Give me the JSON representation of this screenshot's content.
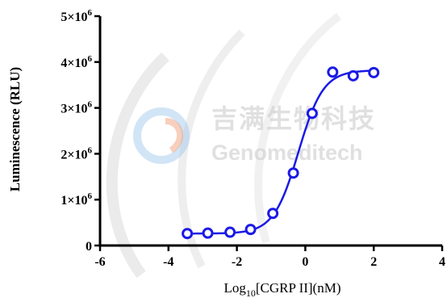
{
  "chart_data": {
    "type": "scatter",
    "title": "",
    "xlabel": "Log10[CGRP II](nM)",
    "xlabel_parts": {
      "base": "Log",
      "sub": "10",
      "rest": "[CGRP II](nM)"
    },
    "ylabel": "Luminescence (RLU)",
    "xlim": [
      -6,
      4
    ],
    "ylim": [
      0,
      5000000
    ],
    "x_ticks": [
      -6,
      -4,
      -2,
      0,
      2,
      4
    ],
    "x_tick_labels": [
      "-6",
      "-4",
      "-2",
      "0",
      "2",
      "4"
    ],
    "y_ticks": [
      0,
      1000000,
      2000000,
      3000000,
      4000000,
      5000000
    ],
    "y_tick_labels": [
      {
        "mant": "0",
        "exp": ""
      },
      {
        "mant": "1×10",
        "exp": "6"
      },
      {
        "mant": "2×10",
        "exp": "6"
      },
      {
        "mant": "3×10",
        "exp": "6"
      },
      {
        "mant": "4×10",
        "exp": "6"
      },
      {
        "mant": "5×10",
        "exp": "6"
      }
    ],
    "grid": false,
    "series": [
      {
        "points": [
          {
            "x": -3.45,
            "y": 260000
          },
          {
            "x": -2.85,
            "y": 270000
          },
          {
            "x": -2.2,
            "y": 290000
          },
          {
            "x": -1.6,
            "y": 350000
          },
          {
            "x": -0.95,
            "y": 700000
          },
          {
            "x": -0.35,
            "y": 1580000
          },
          {
            "x": 0.2,
            "y": 2880000
          },
          {
            "x": 0.8,
            "y": 3780000
          },
          {
            "x": 1.4,
            "y": 3700000
          },
          {
            "x": 2.0,
            "y": 3770000
          }
        ],
        "fit": {
          "model": "4PL",
          "bottom": 260000,
          "top": 3820000,
          "logEC50": -0.2,
          "hill": 1.2
        },
        "color": "#1a1ae6"
      }
    ]
  },
  "watermark": {
    "cn": "吉满生物科技",
    "en": "Genomeditech"
  }
}
